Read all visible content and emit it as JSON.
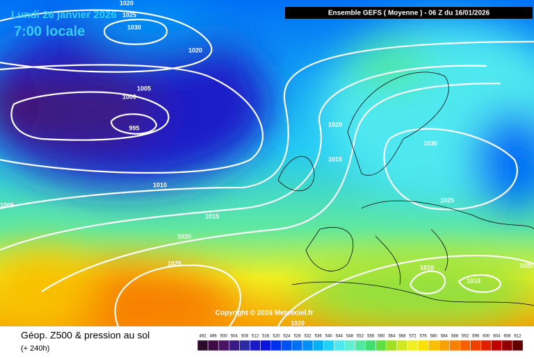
{
  "header": {
    "date": "Lundi 26 janvier 2026",
    "time": "7:00 locale",
    "run": "Ensemble GEFS  ( Moyenne )  -  06 Z du 16/01/2026"
  },
  "isobar_labels": [
    "1020",
    "1025",
    "1030",
    "1020",
    "1005",
    "1000",
    "995",
    "1020",
    "1015",
    "1030",
    "1010",
    "1005",
    "1015",
    "1020",
    "1025",
    "1025",
    "1010",
    "1010",
    "1020",
    "1020"
  ],
  "copyright": "Copyright © 2026 Meteociel.fr",
  "footer": {
    "title": "Géop. Z500 & pression au sol",
    "lead": "(+ 240h)"
  },
  "scale": {
    "values": [
      492,
      496,
      500,
      504,
      508,
      512,
      516,
      520,
      524,
      528,
      532,
      536,
      540,
      544,
      548,
      552,
      556,
      560,
      564,
      568,
      572,
      576,
      580,
      584,
      588,
      592,
      596,
      600,
      604,
      608,
      612
    ],
    "colors": [
      "#2b0a2a",
      "#3d0c45",
      "#4a1465",
      "#3a1a85",
      "#2a2aa5",
      "#1a1ac8",
      "#0a14e0",
      "#0030f0",
      "#0050f5",
      "#0070f5",
      "#0090f5",
      "#00b0f5",
      "#20d0f5",
      "#50e8f0",
      "#60f0d0",
      "#50e8a0",
      "#40e070",
      "#60e040",
      "#a0e020",
      "#d0e820",
      "#f0f020",
      "#f8e000",
      "#f8c000",
      "#f8a000",
      "#f88000",
      "#f86000",
      "#f04000",
      "#e02000",
      "#c00000",
      "#900000",
      "#600000"
    ]
  }
}
